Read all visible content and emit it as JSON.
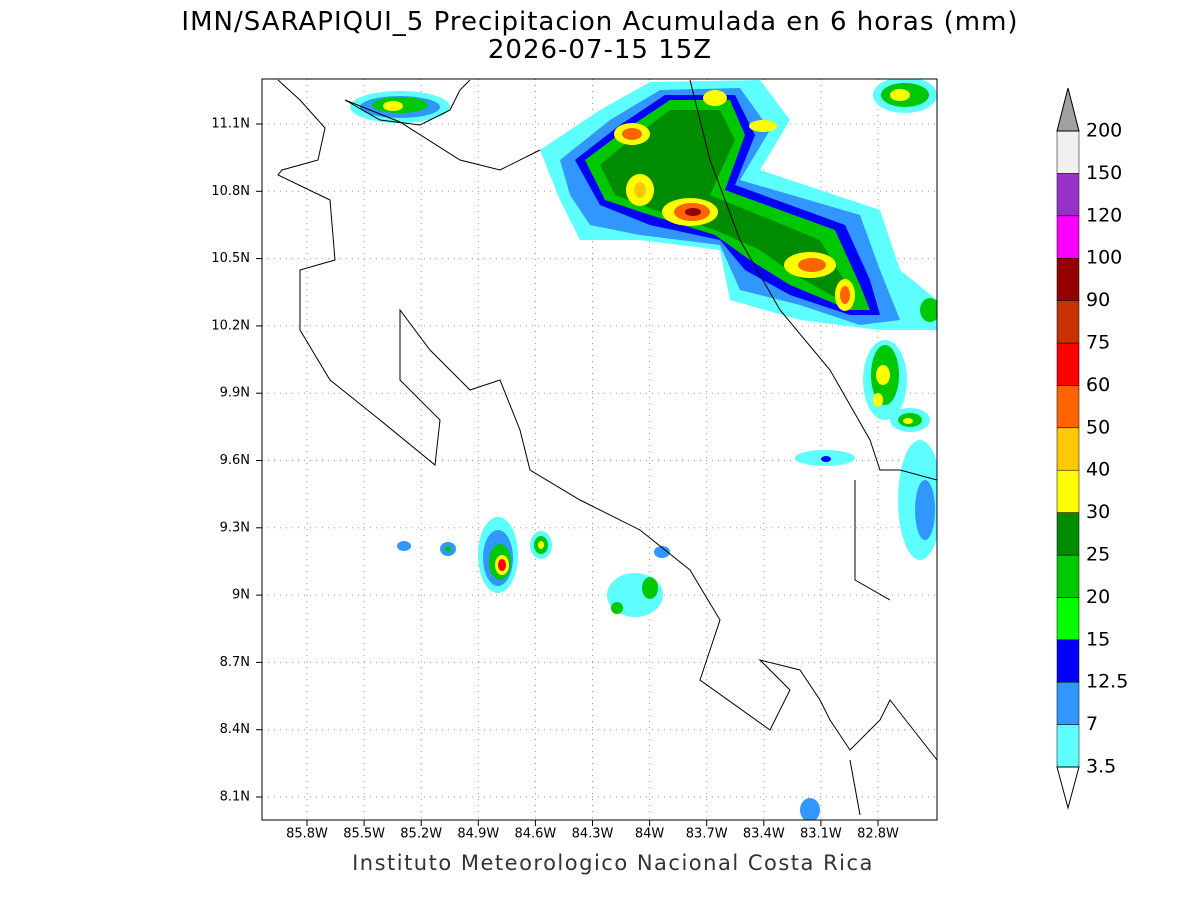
{
  "header": {
    "title": "IMN/SARAPIQUI_5 Precipitacion Acumulada en 6 horas (mm)",
    "subtitle": "2026-07-15 15Z"
  },
  "map": {
    "lat_labels": [
      "11.1N",
      "10.8N",
      "10.5N",
      "10.2N",
      "9.9N",
      "9.6N",
      "9.3N",
      "9N",
      "8.7N",
      "8.4N",
      "8.1N"
    ],
    "lon_labels": [
      "85.8W",
      "85.5W",
      "85.2W",
      "84.9W",
      "84.6W",
      "84.3W",
      "84W",
      "83.7W",
      "83.4W",
      "83.1W",
      "82.8W"
    ]
  },
  "colorbar": {
    "levels": [
      3.5,
      7,
      12.5,
      15,
      20,
      25,
      30,
      40,
      50,
      60,
      75,
      90,
      100,
      120,
      150,
      200
    ],
    "colors": [
      "#5effff",
      "#3296ff",
      "#0000ff",
      "#00ff00",
      "#00c800",
      "#008c00",
      "#ffff00",
      "#ffc800",
      "#ff6400",
      "#ff0000",
      "#c83200",
      "#960000",
      "#ff00ff",
      "#9632c8",
      "#f0f0f0"
    ],
    "over_color": "#a0a0a0",
    "under_color": "#ffffff"
  },
  "footer": "Instituto Meteorologico Nacional Costa Rica"
}
